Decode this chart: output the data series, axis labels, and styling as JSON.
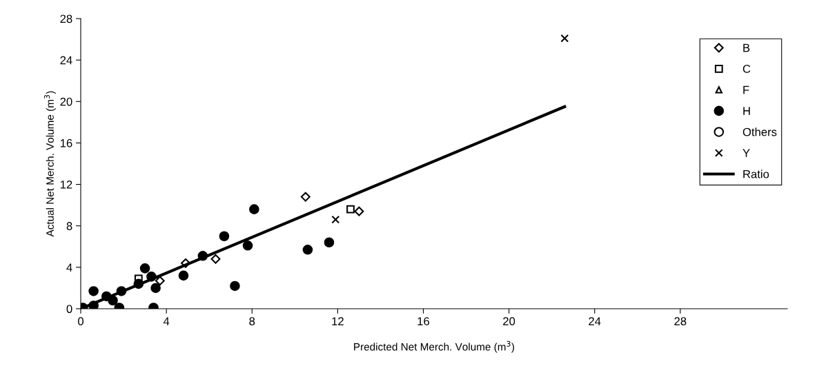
{
  "chart_data": {
    "type": "scatter",
    "xlabel": "Predicted Net Merch. Volume (m$^{3}$)",
    "ylabel": "Actual Net Merch. Volume (m$^{3}$)",
    "xlim": [
      0,
      33
    ],
    "ylim": [
      0,
      28
    ],
    "xticks": [
      0,
      4,
      8,
      12,
      16,
      20,
      24,
      28
    ],
    "yticks": [
      0,
      4,
      8,
      12,
      16,
      20,
      24,
      28
    ],
    "grid": false,
    "legend": "top right",
    "series": [
      {
        "name": "B",
        "color": "#000000",
        "marker": "diamond",
        "x": [
          10.5,
          13.0,
          4.9,
          3.7,
          6.3
        ],
        "values": [
          10.8,
          9.4,
          4.4,
          2.7,
          4.8
        ]
      },
      {
        "name": "C",
        "color": "#000000",
        "marker": "square",
        "x": [
          12.6,
          2.7
        ],
        "values": [
          9.6,
          2.9
        ]
      },
      {
        "name": "F",
        "color": "#000000",
        "marker": "triangle"
      },
      {
        "name": "H",
        "color": "#000000",
        "marker": "circle",
        "x": [
          0.6,
          1.8,
          3.4,
          3.0,
          3.3,
          3.5,
          2.7,
          1.9,
          1.2,
          1.5,
          0.8,
          0.6,
          0.1,
          4.8,
          5.7,
          8.1,
          6.7,
          7.8,
          7.2,
          10.6,
          11.6
        ],
        "values": [
          1.7,
          0.1,
          0.1,
          3.9,
          3.1,
          2.0,
          2.4,
          1.7,
          1.2,
          0.8,
          null,
          0.3,
          0.1,
          3.2,
          5.1,
          9.6,
          7.0,
          6.1,
          2.2,
          5.7,
          6.4
        ]
      },
      {
        "name": "Others",
        "color": "#000000",
        "marker": "circle"
      },
      {
        "name": "Y",
        "color": "#000000",
        "marker": "cross",
        "x": [
          11.9,
          22.6
        ],
        "values": [
          8.6,
          26.1
        ]
      },
      {
        "name": "Ratio",
        "type": "line",
        "color": "#000000",
        "marker": "none",
        "line_style": "solid",
        "x": [
          0,
          22.6
        ],
        "values": [
          0,
          19.5
        ]
      }
    ]
  }
}
